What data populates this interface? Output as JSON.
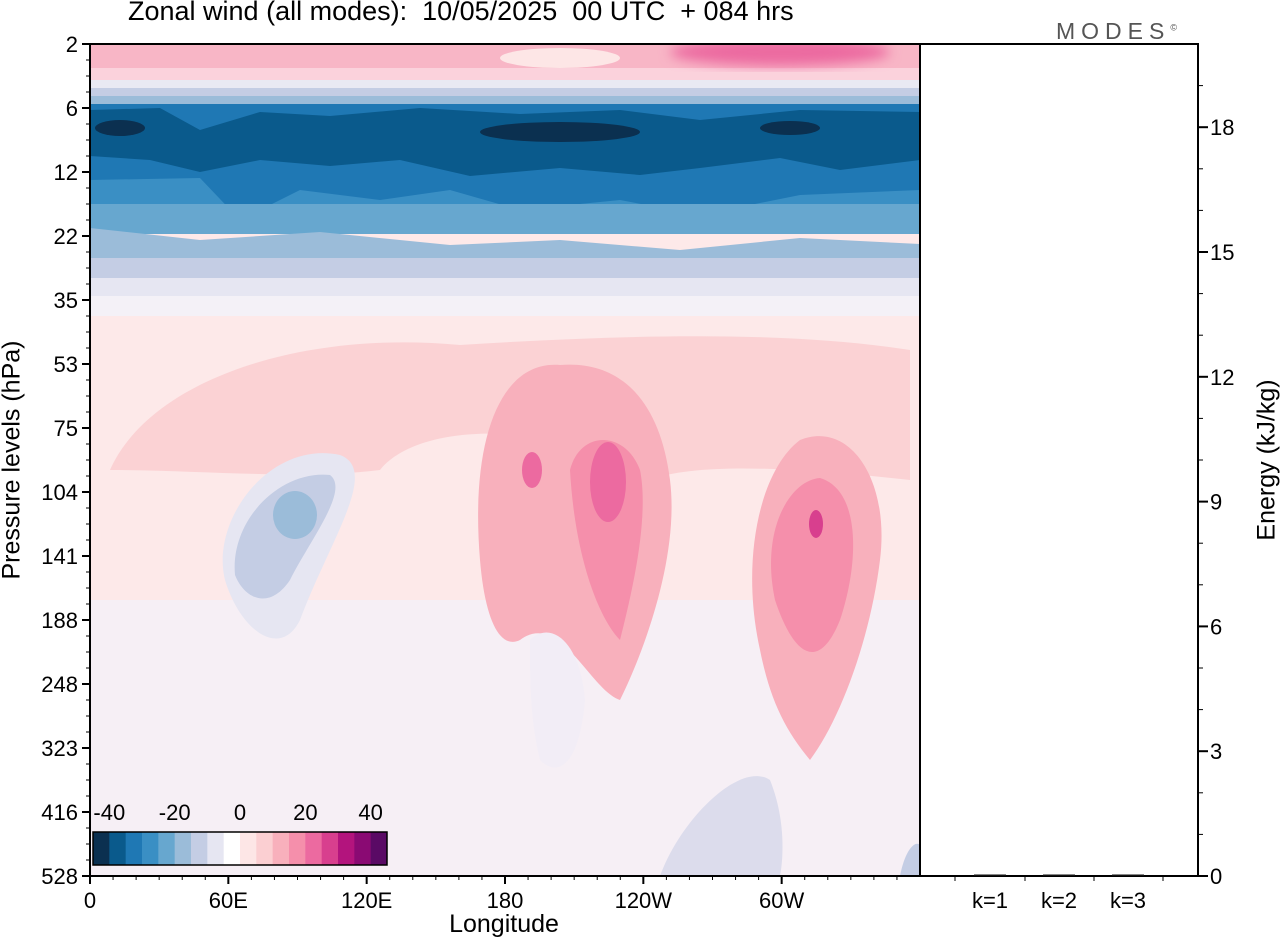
{
  "title": "Zonal wind (all modes):  10/05/2025  00 UTC  + 084 hrs",
  "brand": "MODES",
  "brand_mark": "©",
  "chart_data": [
    {
      "type": "heatmap",
      "ylabel": "Pressure levels (hPa)",
      "xlabel": "Longitude",
      "x_ticks": [
        "0",
        "60E",
        "120E",
        "180",
        "120W",
        "60W"
      ],
      "y_ticks": [
        "2",
        "6",
        "12",
        "22",
        "35",
        "53",
        "75",
        "104",
        "141",
        "188",
        "248",
        "323",
        "416",
        "528"
      ],
      "y_scale": "log",
      "colorbar": {
        "labels": [
          "-40",
          "-20",
          "0",
          "20",
          "40"
        ],
        "range": [
          -45,
          45
        ],
        "colors": [
          "#0b3050",
          "#0a5a8c",
          "#1f78b4",
          "#3a8fc4",
          "#67a7cf",
          "#9bbcd9",
          "#c4cde4",
          "#e6e6f2",
          "#ffffff",
          "#fde6e6",
          "#fbcfd2",
          "#f8b0bc",
          "#f58fab",
          "#ec6aa0",
          "#d83f8e",
          "#b3147d",
          "#8a0a73",
          "#5a0a65"
        ]
      },
      "features": [
        {
          "region": "stratospheric westward band",
          "pressure_hPa": [
            6,
            22
          ],
          "longitude": "all",
          "value": -35
        },
        {
          "region": "upper level eastward layer",
          "pressure_hPa": [
            2,
            4
          ],
          "longitude": "all",
          "value": 12
        },
        {
          "region": "jet near 180",
          "pressure_hPa": 104,
          "longitude": "160W",
          "value": 25
        },
        {
          "region": "jet near 60W",
          "pressure_hPa": 141,
          "longitude": "65W",
          "value": 22
        },
        {
          "region": "westward core",
          "pressure_hPa": 120,
          "longitude": "70E",
          "value": -10
        }
      ]
    },
    {
      "type": "bar",
      "categories": [
        "k=1",
        "k=2",
        "k=3"
      ],
      "values": [
        0.03,
        0.01,
        0.005
      ],
      "ylabel": "Energy (kJ/kg)",
      "y_ticks": [
        "0",
        "3",
        "6",
        "9",
        "12",
        "15",
        "18"
      ],
      "ylim": [
        0,
        20
      ]
    }
  ]
}
